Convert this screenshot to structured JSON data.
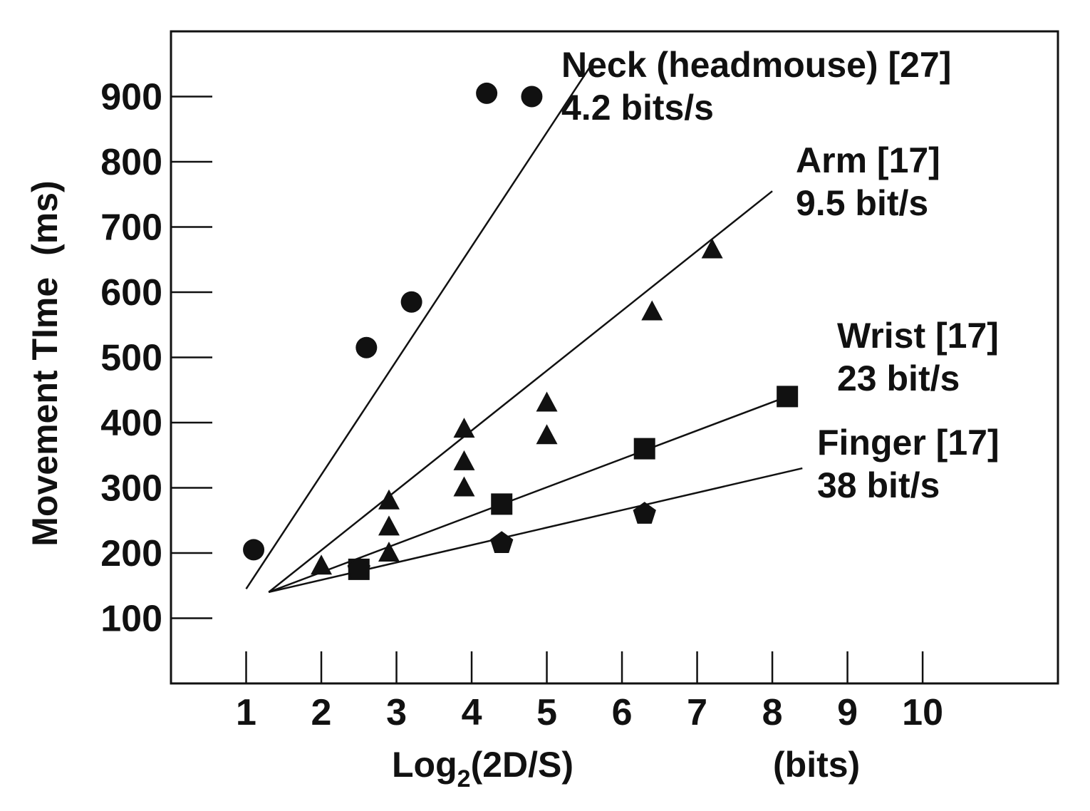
{
  "chart_data": {
    "type": "scatter",
    "xlabel_main": "Log",
    "xlabel_sub": "2",
    "xlabel_rest": "(2D/S)",
    "xlabel_unit": "(bits)",
    "ylabel": "Movement TIme",
    "ylabel_unit": "(ms)",
    "xticks": [
      "1",
      "2",
      "3",
      "4",
      "5",
      "6",
      "7",
      "8",
      "9",
      "10"
    ],
    "yticks": [
      "100",
      "200",
      "300",
      "400",
      "500",
      "600",
      "700",
      "800",
      "900"
    ],
    "xlim": [
      0,
      11.8
    ],
    "ylim": [
      0,
      1000
    ],
    "grid": false,
    "series": [
      {
        "name": "Neck (headmouse) [27]",
        "rate": "4.2 bits/s",
        "marker": "circle",
        "x": [
          1.1,
          2.6,
          3.2,
          4.2,
          4.8
        ],
        "y": [
          205,
          515,
          585,
          905,
          900
        ],
        "fit": [
          [
            1.0,
            145
          ],
          [
            5.6,
            950
          ]
        ]
      },
      {
        "name": "Arm [17]",
        "rate": "9.5 bit/s",
        "marker": "triangle",
        "x": [
          2.0,
          2.9,
          2.9,
          2.9,
          3.9,
          3.9,
          3.9,
          5.0,
          5.0,
          6.4,
          7.2
        ],
        "y": [
          180,
          200,
          240,
          280,
          300,
          340,
          390,
          380,
          430,
          570,
          665
        ],
        "fit": [
          [
            1.3,
            140
          ],
          [
            8.0,
            755
          ]
        ]
      },
      {
        "name": "Wrist [17]",
        "rate": "23 bit/s",
        "marker": "square",
        "x": [
          2.5,
          4.4,
          6.3,
          8.2
        ],
        "y": [
          175,
          275,
          360,
          440
        ],
        "fit": [
          [
            1.3,
            140
          ],
          [
            8.2,
            440
          ]
        ]
      },
      {
        "name": "Finger [17]",
        "rate": "38 bit/s",
        "marker": "pentagon",
        "x": [
          2.5,
          4.4,
          6.3
        ],
        "y": [
          175,
          215,
          260
        ],
        "fit": [
          [
            1.3,
            140
          ],
          [
            8.4,
            330
          ]
        ]
      }
    ]
  }
}
